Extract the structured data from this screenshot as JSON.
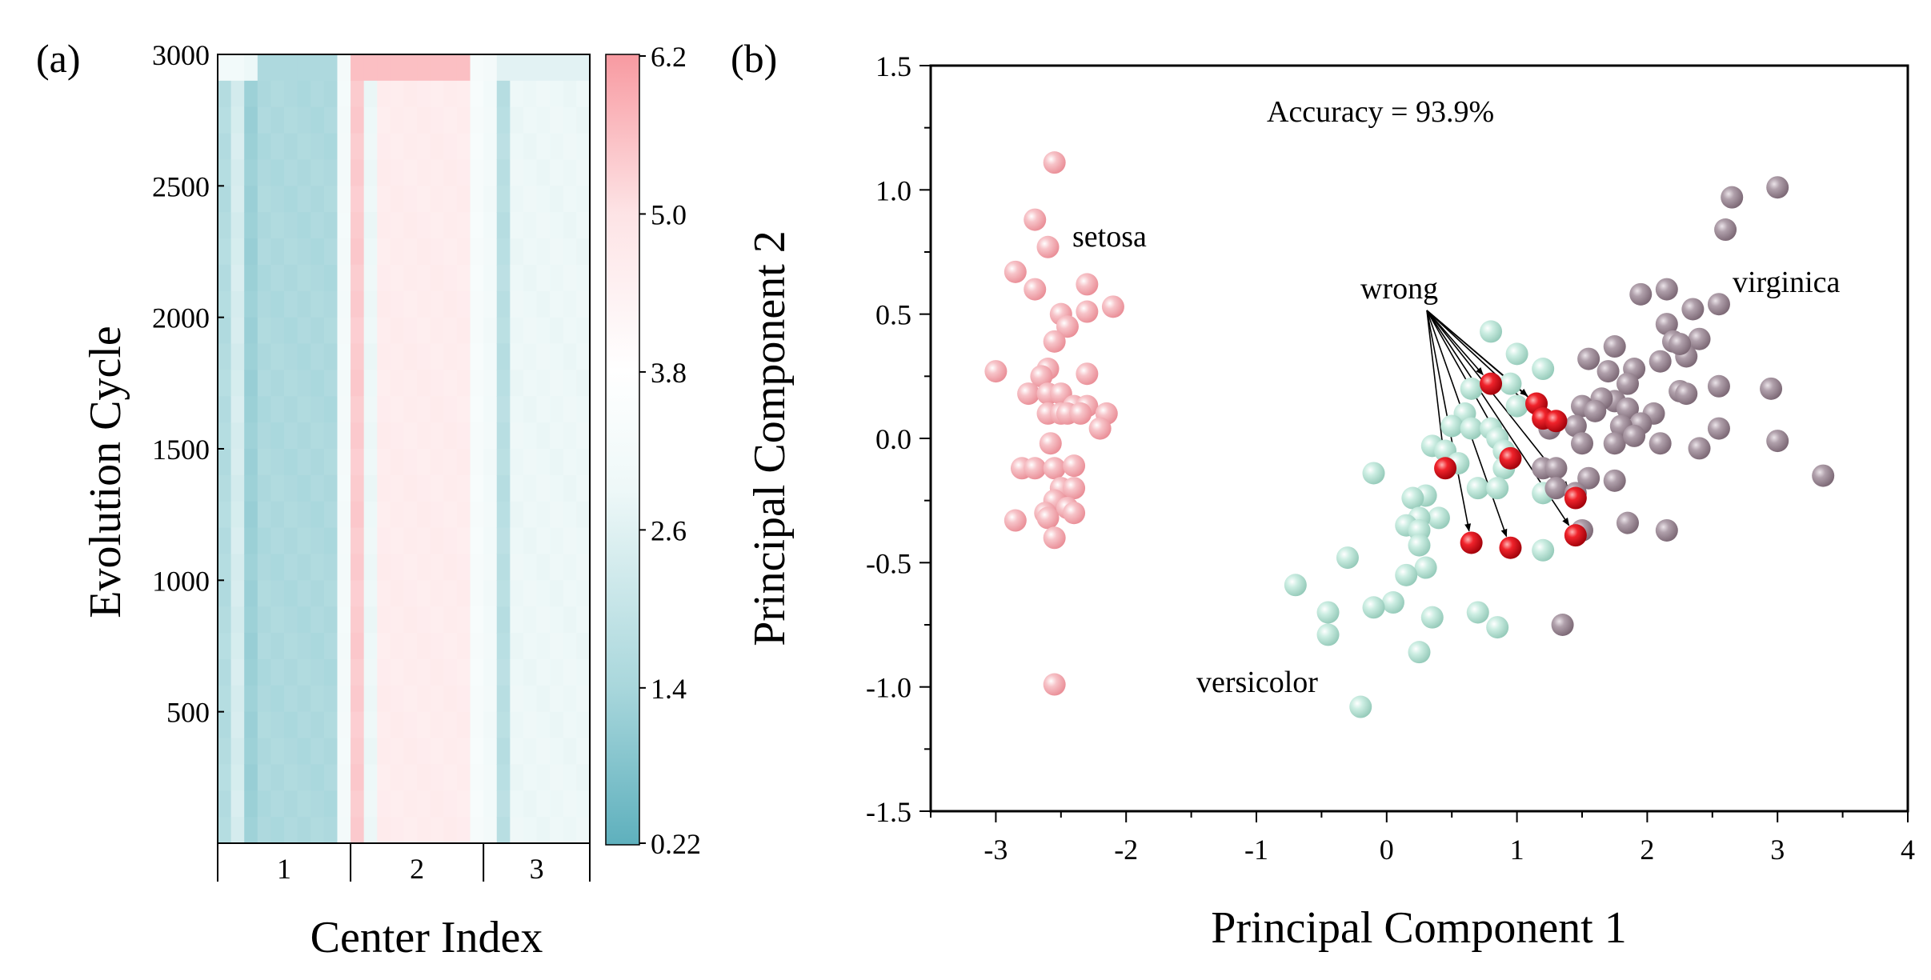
{
  "chart_data": [
    {
      "panel_label": "(a)",
      "type": "heatmap",
      "xlabel": "Center Index",
      "ylabel": "Evolution Cycle",
      "ylim": [
        0,
        3000
      ],
      "yticks": [
        "500",
        "1000",
        "1500",
        "2000",
        "2500",
        "3000"
      ],
      "center_groups": [
        {
          "label": "1",
          "columns": [
            0,
            9
          ]
        },
        {
          "label": "2",
          "columns": [
            10,
            19
          ]
        },
        {
          "label": "3",
          "columns": [
            20,
            27
          ]
        }
      ],
      "colorbar": {
        "min": 0.22,
        "max": 6.2,
        "tick_labels": [
          "0.22",
          "1.4",
          "2.6",
          "3.8",
          "5.0",
          "6.2"
        ],
        "colors": [
          "#5eb0bd",
          "#a9d7dc",
          "#eef8f8",
          "#ffffff",
          "#fde3e5",
          "#f89aa1"
        ]
      },
      "column_values": [
        1.6,
        2.2,
        1.2,
        1.5,
        1.5,
        1.5,
        1.5,
        1.5,
        1.5,
        3.0,
        5.4,
        2.6,
        4.6,
        4.6,
        4.6,
        4.6,
        4.6,
        4.6,
        4.6,
        3.2,
        2.9,
        1.7,
        2.6,
        2.6,
        2.6,
        2.6,
        2.6,
        2.6
      ],
      "top_row_values": [
        2.9,
        2.9,
        2.6,
        1.5,
        1.5,
        1.5,
        1.5,
        1.5,
        1.5,
        3.0,
        5.6,
        5.6,
        5.6,
        5.6,
        5.6,
        5.6,
        5.6,
        5.6,
        5.6,
        3.2,
        3.0,
        2.4,
        2.4,
        2.4,
        2.4,
        2.4,
        2.4,
        2.4
      ]
    },
    {
      "panel_label": "(b)",
      "type": "scatter",
      "xlabel": "Principal Component 1",
      "ylabel": "Principal Component 2",
      "xlim": [
        -3.5,
        4
      ],
      "ylim": [
        -1.5,
        1.5
      ],
      "xticks": [
        "-3",
        "-2",
        "-1",
        "0",
        "1",
        "2",
        "3",
        "4"
      ],
      "yticks": [
        "-1.5",
        "-1.0",
        "-0.5",
        "0.0",
        "0.5",
        "1.0",
        "1.5"
      ],
      "accuracy_text": "Accuracy = 93.9%",
      "wrong_label": "wrong",
      "series": [
        {
          "name": "setosa",
          "color": "#f4a6ad",
          "points": [
            [
              -2.55,
              1.11
            ],
            [
              -2.7,
              0.88
            ],
            [
              -2.85,
              0.67
            ],
            [
              -2.6,
              0.77
            ],
            [
              -2.3,
              0.62
            ],
            [
              -2.1,
              0.53
            ],
            [
              -2.7,
              0.6
            ],
            [
              -2.3,
              0.51
            ],
            [
              -2.5,
              0.5
            ],
            [
              -2.45,
              0.45
            ],
            [
              -2.55,
              0.39
            ],
            [
              -2.6,
              0.28
            ],
            [
              -2.65,
              0.25
            ],
            [
              -3.0,
              0.27
            ],
            [
              -2.3,
              0.26
            ],
            [
              -2.75,
              0.18
            ],
            [
              -2.6,
              0.18
            ],
            [
              -2.5,
              0.18
            ],
            [
              -2.4,
              0.13
            ],
            [
              -2.3,
              0.13
            ],
            [
              -2.6,
              0.1
            ],
            [
              -2.5,
              0.1
            ],
            [
              -2.45,
              0.1
            ],
            [
              -2.35,
              0.1
            ],
            [
              -2.15,
              0.1
            ],
            [
              -2.2,
              0.04
            ],
            [
              -2.58,
              -0.02
            ],
            [
              -2.8,
              -0.12
            ],
            [
              -2.7,
              -0.12
            ],
            [
              -2.55,
              -0.12
            ],
            [
              -2.4,
              -0.11
            ],
            [
              -2.5,
              -0.2
            ],
            [
              -2.4,
              -0.2
            ],
            [
              -2.55,
              -0.25
            ],
            [
              -2.45,
              -0.28
            ],
            [
              -2.62,
              -0.3
            ],
            [
              -2.4,
              -0.3
            ],
            [
              -2.85,
              -0.33
            ],
            [
              -2.6,
              -0.32
            ],
            [
              -2.55,
              -0.4
            ],
            [
              -2.55,
              -0.99
            ]
          ]
        },
        {
          "name": "versicolor",
          "color": "#b9e3d6",
          "points": [
            [
              0.8,
              0.43
            ],
            [
              1.0,
              0.34
            ],
            [
              1.2,
              0.28
            ],
            [
              0.95,
              0.22
            ],
            [
              0.65,
              0.2
            ],
            [
              0.6,
              0.1
            ],
            [
              1.0,
              0.13
            ],
            [
              0.5,
              0.05
            ],
            [
              0.65,
              0.04
            ],
            [
              0.8,
              0.04
            ],
            [
              0.35,
              -0.03
            ],
            [
              0.45,
              -0.05
            ],
            [
              0.85,
              0.0
            ],
            [
              0.9,
              -0.05
            ],
            [
              0.55,
              -0.1
            ],
            [
              0.9,
              -0.12
            ],
            [
              -0.1,
              -0.14
            ],
            [
              0.3,
              -0.23
            ],
            [
              0.2,
              -0.24
            ],
            [
              0.7,
              -0.2
            ],
            [
              0.85,
              -0.2
            ],
            [
              1.2,
              -0.22
            ],
            [
              0.4,
              -0.32
            ],
            [
              0.25,
              -0.32
            ],
            [
              0.15,
              -0.35
            ],
            [
              0.25,
              -0.37
            ],
            [
              0.25,
              -0.43
            ],
            [
              -0.3,
              -0.48
            ],
            [
              1.2,
              -0.45
            ],
            [
              0.3,
              -0.52
            ],
            [
              0.15,
              -0.55
            ],
            [
              -0.7,
              -0.59
            ],
            [
              0.05,
              -0.66
            ],
            [
              -0.1,
              -0.68
            ],
            [
              -0.45,
              -0.7
            ],
            [
              0.35,
              -0.72
            ],
            [
              0.7,
              -0.7
            ],
            [
              0.85,
              -0.76
            ],
            [
              -0.45,
              -0.79
            ],
            [
              0.25,
              -0.86
            ],
            [
              -0.2,
              -1.08
            ]
          ]
        },
        {
          "name": "virginica",
          "color": "#a5949f",
          "points": [
            [
              3.0,
              1.01
            ],
            [
              2.65,
              0.97
            ],
            [
              2.6,
              0.84
            ],
            [
              1.95,
              0.58
            ],
            [
              2.15,
              0.6
            ],
            [
              2.55,
              0.54
            ],
            [
              2.35,
              0.52
            ],
            [
              2.15,
              0.46
            ],
            [
              2.2,
              0.39
            ],
            [
              2.4,
              0.4
            ],
            [
              2.3,
              0.33
            ],
            [
              2.25,
              0.38
            ],
            [
              1.75,
              0.37
            ],
            [
              2.1,
              0.31
            ],
            [
              1.55,
              0.32
            ],
            [
              1.7,
              0.27
            ],
            [
              1.9,
              0.28
            ],
            [
              1.85,
              0.22
            ],
            [
              2.55,
              0.21
            ],
            [
              2.95,
              0.2
            ],
            [
              2.25,
              0.19
            ],
            [
              2.3,
              0.18
            ],
            [
              1.75,
              0.15
            ],
            [
              1.65,
              0.16
            ],
            [
              1.5,
              0.13
            ],
            [
              1.6,
              0.11
            ],
            [
              1.85,
              0.12
            ],
            [
              2.05,
              0.1
            ],
            [
              1.95,
              0.06
            ],
            [
              1.8,
              0.05
            ],
            [
              2.55,
              0.04
            ],
            [
              1.45,
              0.05
            ],
            [
              1.25,
              0.04
            ],
            [
              1.5,
              -0.02
            ],
            [
              1.75,
              -0.02
            ],
            [
              1.9,
              0.01
            ],
            [
              2.1,
              -0.02
            ],
            [
              2.4,
              -0.04
            ],
            [
              3.0,
              -0.01
            ],
            [
              1.2,
              -0.12
            ],
            [
              1.3,
              -0.12
            ],
            [
              1.55,
              -0.16
            ],
            [
              1.75,
              -0.17
            ],
            [
              1.3,
              -0.2
            ],
            [
              3.35,
              -0.15
            ],
            [
              1.45,
              -0.22
            ],
            [
              1.5,
              -0.37
            ],
            [
              1.85,
              -0.34
            ],
            [
              2.15,
              -0.37
            ],
            [
              1.35,
              -0.75
            ]
          ]
        },
        {
          "name": "wrong",
          "color": "#e8121b",
          "points": [
            [
              0.8,
              0.22
            ],
            [
              1.15,
              0.14
            ],
            [
              1.2,
              0.08
            ],
            [
              1.3,
              0.07
            ],
            [
              0.95,
              -0.08
            ],
            [
              0.45,
              -0.12
            ],
            [
              1.45,
              -0.24
            ],
            [
              1.45,
              -0.39
            ],
            [
              0.65,
              -0.42
            ],
            [
              0.95,
              -0.44
            ]
          ]
        }
      ],
      "labels": {
        "setosa": "setosa",
        "versicolor": "versicolor",
        "virginica": "virginica"
      }
    }
  ]
}
